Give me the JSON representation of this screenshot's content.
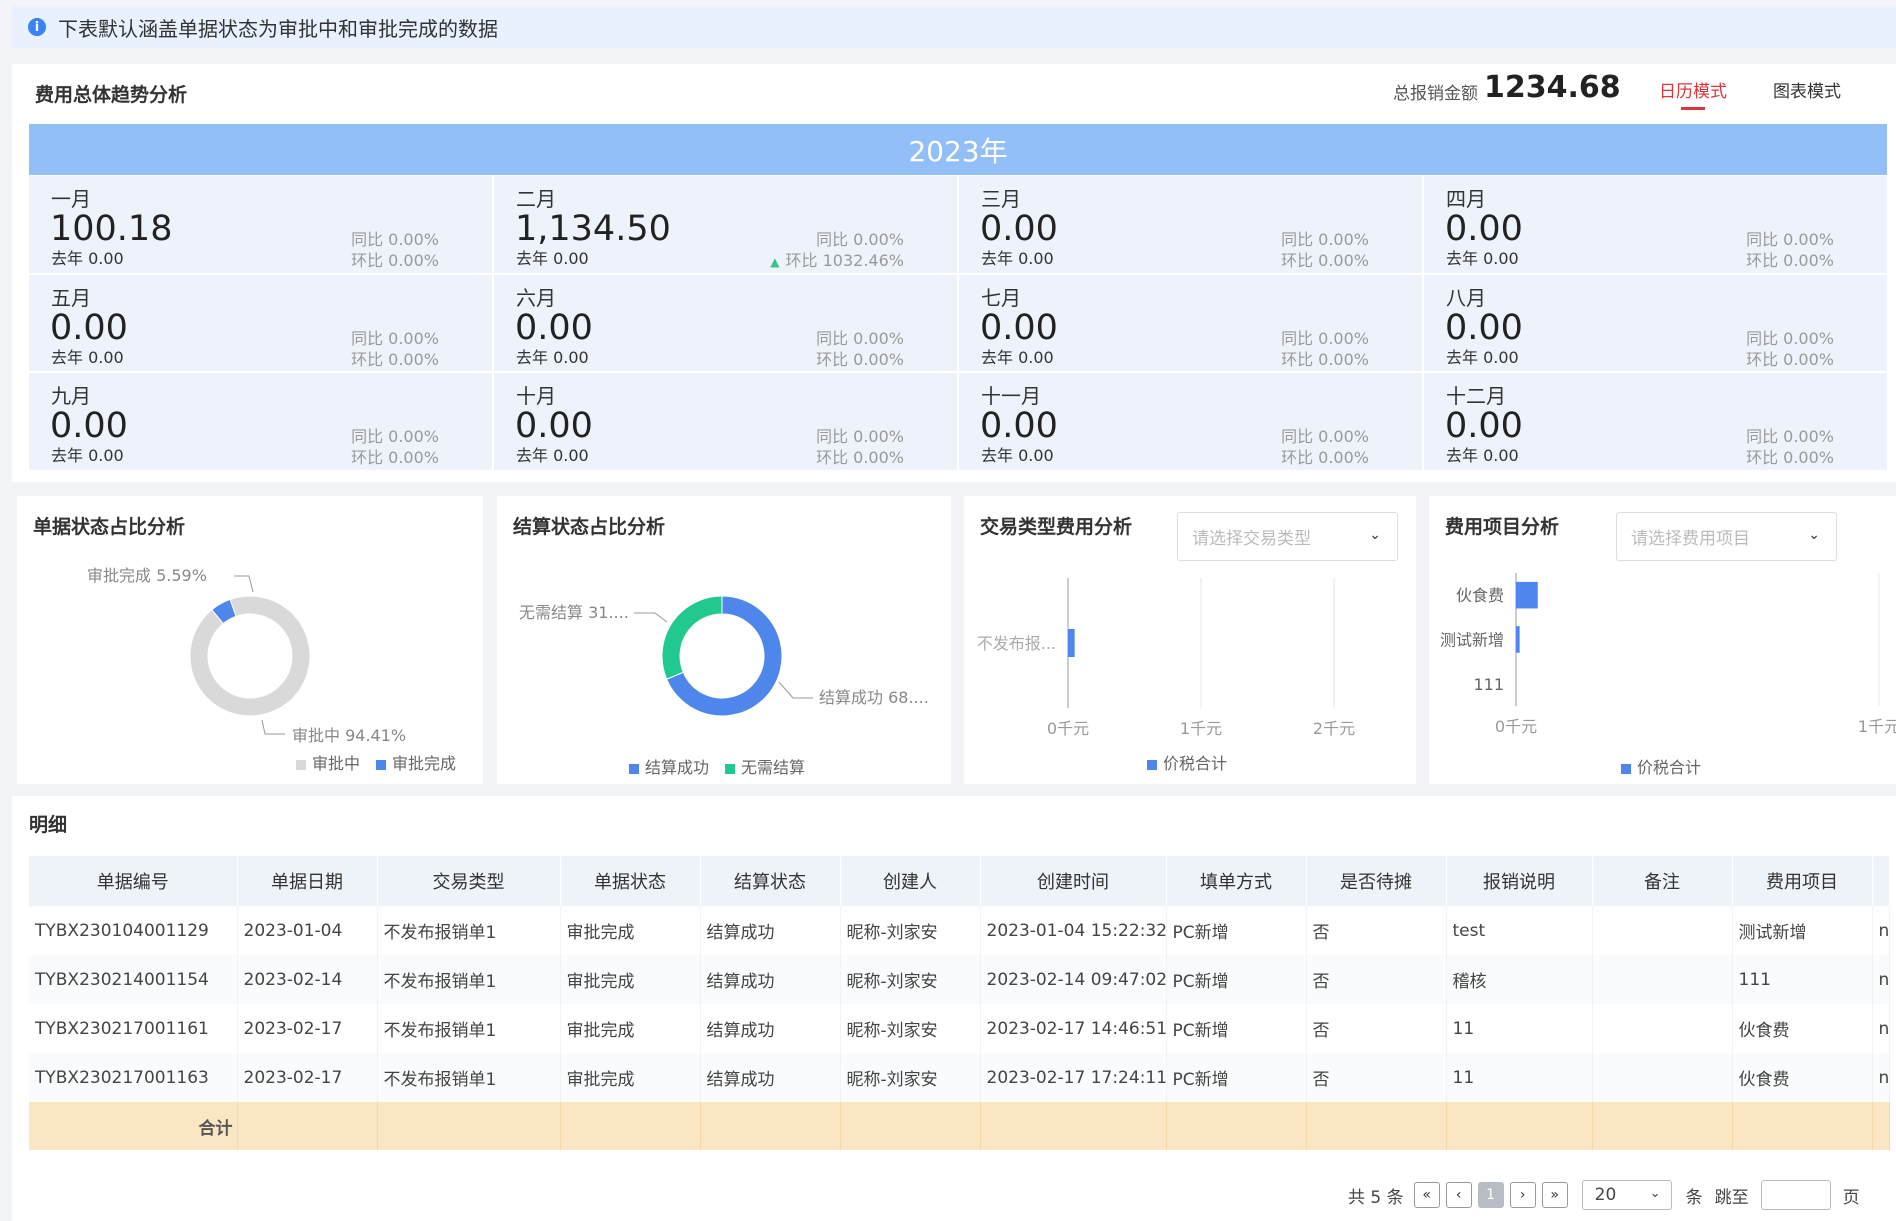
{
  "notice": {
    "text": "下表默认涵盖单据状态为审批中和审批完成的数据"
  },
  "trend": {
    "title": "费用总体趋势分析",
    "total_label": "总报销金额",
    "total_value": "1234.68",
    "mode_calendar": "日历模式",
    "mode_chart": "图表模式",
    "year": "2023年",
    "months": [
      {
        "name": "一月",
        "value": "100.18",
        "prev": "去年 0.00",
        "yoy": "同比 0.00%",
        "qoq": "环比 0.00%",
        "up": false
      },
      {
        "name": "二月",
        "value": "1,134.50",
        "prev": "去年 0.00",
        "yoy": "同比 0.00%",
        "qoq": "环比 1032.46%",
        "up": true
      },
      {
        "name": "三月",
        "value": "0.00",
        "prev": "去年 0.00",
        "yoy": "同比 0.00%",
        "qoq": "环比 0.00%",
        "up": false
      },
      {
        "name": "四月",
        "value": "0.00",
        "prev": "去年 0.00",
        "yoy": "同比 0.00%",
        "qoq": "环比 0.00%",
        "up": false
      },
      {
        "name": "五月",
        "value": "0.00",
        "prev": "去年 0.00",
        "yoy": "同比 0.00%",
        "qoq": "环比 0.00%",
        "up": false
      },
      {
        "name": "六月",
        "value": "0.00",
        "prev": "去年 0.00",
        "yoy": "同比 0.00%",
        "qoq": "环比 0.00%",
        "up": false
      },
      {
        "name": "七月",
        "value": "0.00",
        "prev": "去年 0.00",
        "yoy": "同比 0.00%",
        "qoq": "环比 0.00%",
        "up": false
      },
      {
        "name": "八月",
        "value": "0.00",
        "prev": "去年 0.00",
        "yoy": "同比 0.00%",
        "qoq": "环比 0.00%",
        "up": false
      },
      {
        "name": "九月",
        "value": "0.00",
        "prev": "去年 0.00",
        "yoy": "同比 0.00%",
        "qoq": "环比 0.00%",
        "up": false
      },
      {
        "name": "十月",
        "value": "0.00",
        "prev": "去年 0.00",
        "yoy": "同比 0.00%",
        "qoq": "环比 0.00%",
        "up": false
      },
      {
        "name": "十一月",
        "value": "0.00",
        "prev": "去年 0.00",
        "yoy": "同比 0.00%",
        "qoq": "环比 0.00%",
        "up": false
      },
      {
        "name": "十二月",
        "value": "0.00",
        "prev": "去年 0.00",
        "yoy": "同比 0.00%",
        "qoq": "环比 0.00%",
        "up": false
      }
    ]
  },
  "panels": {
    "doc_status": {
      "title": "单据状态占比分析"
    },
    "settle_status": {
      "title": "结算状态占比分析"
    },
    "trade_type": {
      "title": "交易类型费用分析",
      "placeholder": "请选择交易类型"
    },
    "cost_item": {
      "title": "费用项目分析",
      "placeholder": "请选择费用项目"
    }
  },
  "colors": {
    "accent_red": "#d9363e",
    "blue": "#4f86ec",
    "green": "#22c98f",
    "gray": "#d9d9d9",
    "year_bar": "#93bff8",
    "sum_row": "#fbe6c3"
  },
  "chart_data": [
    {
      "type": "pie",
      "title": "单据状态占比分析",
      "categories": [
        "审批中",
        "审批完成"
      ],
      "values": [
        94.41,
        5.59
      ],
      "labels": [
        "审批中 94.41%",
        "审批完成 5.59%"
      ],
      "colors": [
        "#d9d9d9",
        "#4f86ec"
      ],
      "legend": [
        "审批中",
        "审批完成"
      ]
    },
    {
      "type": "pie",
      "title": "结算状态占比分析",
      "categories": [
        "结算成功",
        "无需结算"
      ],
      "values": [
        68.0,
        31.0
      ],
      "labels": [
        "结算成功 68....",
        "无需结算 31...."
      ],
      "colors": [
        "#4f86ec",
        "#22c98f"
      ],
      "legend": [
        "结算成功",
        "无需结算"
      ]
    },
    {
      "type": "bar",
      "orientation": "horizontal",
      "title": "交易类型费用分析",
      "categories": [
        "不发布报..."
      ],
      "series": [
        {
          "name": "价税合计",
          "values": [
            0.05
          ]
        }
      ],
      "xticks": [
        "0千元",
        "1千元",
        "2千元"
      ],
      "xlim": [
        0,
        2
      ]
    },
    {
      "type": "bar",
      "orientation": "horizontal",
      "title": "费用项目分析",
      "categories": [
        "伙食费",
        "测试新增",
        "111"
      ],
      "series": [
        {
          "name": "价税合计",
          "values": [
            0.06,
            0.01,
            0
          ]
        }
      ],
      "xticks": [
        "0千元",
        "1千元"
      ],
      "xlim": [
        0,
        1
      ]
    }
  ],
  "detail": {
    "title": "明细",
    "columns": [
      "单据编号",
      "单据日期",
      "交易类型",
      "单据状态",
      "结算状态",
      "创建人",
      "创建时间",
      "填单方式",
      "是否待摊",
      "报销说明",
      "备注",
      "费用项目",
      ""
    ],
    "rows": [
      [
        "TYBX230104001129",
        "2023-01-04",
        "不发布报销单1",
        "审批完成",
        "结算成功",
        "昵称-刘家安",
        "2023-01-04 15:22:32",
        "PC新增",
        "否",
        "test",
        "",
        "测试新增",
        "n"
      ],
      [
        "TYBX230214001154",
        "2023-02-14",
        "不发布报销单1",
        "审批完成",
        "结算成功",
        "昵称-刘家安",
        "2023-02-14 09:47:02",
        "PC新增",
        "否",
        "稽核",
        "",
        "111",
        "n"
      ],
      [
        "TYBX230217001161",
        "2023-02-17",
        "不发布报销单1",
        "审批完成",
        "结算成功",
        "昵称-刘家安",
        "2023-02-17 14:46:51",
        "PC新增",
        "否",
        "11",
        "",
        "伙食费",
        "n"
      ],
      [
        "TYBX230217001163",
        "2023-02-17",
        "不发布报销单1",
        "审批完成",
        "结算成功",
        "昵称-刘家安",
        "2023-02-17 17:24:11",
        "PC新增",
        "否",
        "11",
        "",
        "伙食费",
        "n"
      ]
    ],
    "sum_label": "合计"
  },
  "pager": {
    "total": "共 5 条",
    "current": "1",
    "page_size": "20",
    "unit": "条",
    "jump_label": "跳至",
    "page_suffix": "页"
  }
}
